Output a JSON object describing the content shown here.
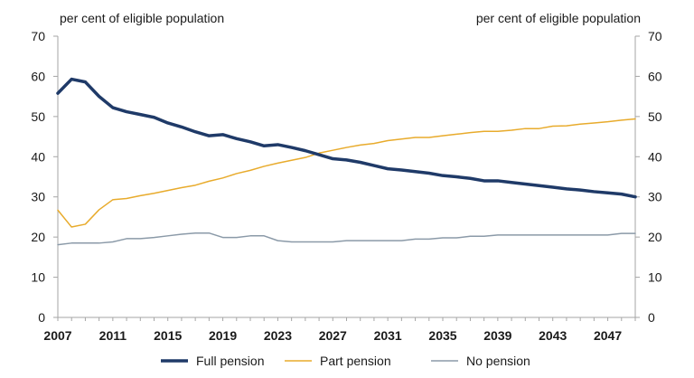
{
  "chart_data": {
    "type": "line",
    "left_axis_label": "per cent of eligible population",
    "right_axis_label": "per cent of eligible population",
    "x": [
      2007,
      2008,
      2009,
      2010,
      2011,
      2012,
      2013,
      2014,
      2015,
      2016,
      2017,
      2018,
      2019,
      2020,
      2021,
      2022,
      2023,
      2024,
      2025,
      2026,
      2027,
      2028,
      2029,
      2030,
      2031,
      2032,
      2033,
      2034,
      2035,
      2036,
      2037,
      2038,
      2039,
      2040,
      2041,
      2042,
      2043,
      2044,
      2045,
      2046,
      2047,
      2048,
      2049
    ],
    "xticks": [
      "2007",
      "2011",
      "2015",
      "2019",
      "2023",
      "2027",
      "2031",
      "2035",
      "2039",
      "2043",
      "2047"
    ],
    "xtick_values": [
      2007,
      2011,
      2015,
      2019,
      2023,
      2027,
      2031,
      2035,
      2039,
      2043,
      2047
    ],
    "yticks": [
      "0",
      "10",
      "20",
      "30",
      "40",
      "50",
      "60",
      "70"
    ],
    "ylim": [
      0,
      70
    ],
    "xlim": [
      2007,
      2049
    ],
    "grid": false,
    "legend_position": "bottom",
    "series": [
      {
        "name": "Full pension",
        "color": "#1f3a68",
        "width": 3.5,
        "values": [
          55.8,
          59.3,
          58.6,
          55.0,
          52.2,
          51.2,
          50.5,
          49.8,
          48.4,
          47.4,
          46.2,
          45.2,
          45.5,
          44.5,
          43.7,
          42.7,
          43.0,
          42.3,
          41.5,
          40.5,
          39.5,
          39.2,
          38.6,
          37.8,
          37.0,
          36.7,
          36.3,
          35.9,
          35.3,
          35.0,
          34.6,
          34.0,
          34.0,
          33.6,
          33.2,
          32.8,
          32.4,
          32.0,
          31.7,
          31.3,
          31.0,
          30.7,
          30.0
        ]
      },
      {
        "name": "Part pension",
        "color": "#e8ab2c",
        "width": 1.5,
        "values": [
          26.7,
          22.5,
          23.2,
          26.8,
          29.3,
          29.6,
          30.3,
          30.9,
          31.6,
          32.3,
          32.9,
          33.9,
          34.7,
          35.8,
          36.6,
          37.6,
          38.4,
          39.1,
          39.8,
          40.9,
          41.6,
          42.3,
          42.9,
          43.3,
          44.0,
          44.4,
          44.8,
          44.8,
          45.2,
          45.6,
          46.0,
          46.3,
          46.3,
          46.6,
          47.0,
          47.0,
          47.6,
          47.7,
          48.1,
          48.4,
          48.7,
          49.1,
          49.4
        ]
      },
      {
        "name": "No pension",
        "color": "#8b9aa8",
        "width": 1.5,
        "values": [
          18.1,
          18.5,
          18.5,
          18.5,
          18.8,
          19.6,
          19.6,
          19.9,
          20.3,
          20.7,
          21.0,
          21.0,
          19.9,
          19.9,
          20.3,
          20.3,
          19.1,
          18.8,
          18.8,
          18.8,
          18.8,
          19.1,
          19.1,
          19.1,
          19.1,
          19.1,
          19.5,
          19.5,
          19.8,
          19.8,
          20.2,
          20.2,
          20.5,
          20.5,
          20.5,
          20.5,
          20.5,
          20.5,
          20.5,
          20.5,
          20.5,
          20.9,
          20.9
        ]
      }
    ]
  }
}
